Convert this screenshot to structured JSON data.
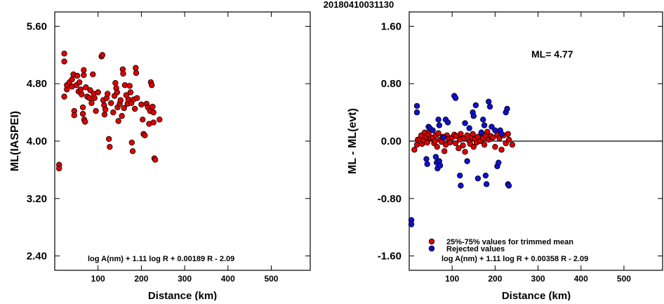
{
  "header": {
    "title": "20180410031130"
  },
  "colors": {
    "kept": "#e00000",
    "rejected": "#1010d0",
    "outline": "#000000"
  },
  "chart_data": [
    {
      "type": "scatter",
      "title": "",
      "xlabel": "Distance (km)",
      "ylabel": "ML(IASPEI)",
      "xlim": [
        0,
        590
      ],
      "ylim": [
        2.2,
        5.8
      ],
      "xticks": [
        100,
        200,
        300,
        400,
        500
      ],
      "xtick_labels": [
        "100",
        "200",
        "300",
        "400",
        "500"
      ],
      "yticks": [
        2.4,
        3.2,
        4.0,
        4.8,
        5.6
      ],
      "ytick_labels": [
        "2.40",
        "3.20",
        "4.00",
        "4.80",
        "5.60"
      ],
      "formula": "log A(nm) + 1.11 log R + 0.00189 R - 2.09",
      "series": [
        {
          "color": "#e00000",
          "points": [
            [
              10,
              3.67
            ],
            [
              10,
              3.62
            ],
            [
              22,
              5.22
            ],
            [
              22,
              5.11
            ],
            [
              22,
              4.62
            ],
            [
              28,
              4.72
            ],
            [
              28,
              4.78
            ],
            [
              34,
              4.82
            ],
            [
              40,
              4.76
            ],
            [
              40,
              4.86
            ],
            [
              43,
              4.93
            ],
            [
              45,
              4.42
            ],
            [
              45,
              4.36
            ],
            [
              50,
              4.78
            ],
            [
              52,
              4.91
            ],
            [
              55,
              4.69
            ],
            [
              57,
              4.82
            ],
            [
              60,
              4.72
            ],
            [
              62,
              4.65
            ],
            [
              65,
              4.47
            ],
            [
              65,
              4.38
            ],
            [
              67,
              4.99
            ],
            [
              67,
              4.92
            ],
            [
              68,
              4.3
            ],
            [
              70,
              4.27
            ],
            [
              72,
              4.75
            ],
            [
              75,
              4.62
            ],
            [
              80,
              4.6
            ],
            [
              82,
              4.71
            ],
            [
              85,
              4.53
            ],
            [
              88,
              4.93
            ],
            [
              90,
              4.66
            ],
            [
              92,
              4.6
            ],
            [
              95,
              4.42
            ],
            [
              100,
              4.68
            ],
            [
              108,
              5.18
            ],
            [
              110,
              5.2
            ],
            [
              112,
              4.57
            ],
            [
              114,
              4.5
            ],
            [
              115,
              4.37
            ],
            [
              117,
              4.44
            ],
            [
              120,
              4.6
            ],
            [
              122,
              4.66
            ],
            [
              125,
              4.03
            ],
            [
              127,
              3.92
            ],
            [
              130,
              4.53
            ],
            [
              135,
              4.4
            ],
            [
              138,
              4.63
            ],
            [
              140,
              4.81
            ],
            [
              142,
              4.74
            ],
            [
              144,
              4.68
            ],
            [
              145,
              4.47
            ],
            [
              147,
              4.28
            ],
            [
              150,
              4.52
            ],
            [
              152,
              4.57
            ],
            [
              155,
              4.35
            ],
            [
              157,
              5.0
            ],
            [
              158,
              4.94
            ],
            [
              160,
              4.46
            ],
            [
              162,
              4.78
            ],
            [
              165,
              4.64
            ],
            [
              168,
              4.52
            ],
            [
              170,
              4.58
            ],
            [
              173,
              4.77
            ],
            [
              175,
              4.68
            ],
            [
              177,
              4.53
            ],
            [
              178,
              3.98
            ],
            [
              180,
              3.86
            ],
            [
              182,
              4.58
            ],
            [
              185,
              4.45
            ],
            [
              187,
              5.02
            ],
            [
              188,
              4.95
            ],
            [
              190,
              4.6
            ],
            [
              200,
              4.51
            ],
            [
              203,
              4.3
            ],
            [
              205,
              4.1
            ],
            [
              208,
              4.08
            ],
            [
              212,
              4.52
            ],
            [
              215,
              4.47
            ],
            [
              218,
              4.24
            ],
            [
              220,
              4.42
            ],
            [
              222,
              4.82
            ],
            [
              224,
              4.78
            ],
            [
              226,
              4.48
            ],
            [
              228,
              4.4
            ],
            [
              228,
              4.26
            ],
            [
              230,
              3.76
            ],
            [
              232,
              3.74
            ],
            [
              242,
              4.3
            ]
          ]
        }
      ]
    },
    {
      "type": "scatter",
      "title": "",
      "xlabel": "Distance (km)",
      "ylabel": "ML - ML(evt)",
      "xlim": [
        0,
        590
      ],
      "ylim": [
        -1.8,
        1.8
      ],
      "xticks": [
        100,
        200,
        300,
        400,
        500
      ],
      "xtick_labels": [
        "100",
        "200",
        "300",
        "400",
        "500"
      ],
      "yticks": [
        -1.6,
        -0.8,
        0.0,
        0.8,
        1.6
      ],
      "ytick_labels": [
        "-1.60",
        "-0.80",
        "0.00",
        "0.80",
        "1.60"
      ],
      "annotation": "ML= 4.77",
      "reference_line": 0.0,
      "formula": "log A(nm) + 1.11 log R + 0.00358 R - 2.09",
      "legend": {
        "position": "bottom-left",
        "entries": [
          "25%-75% values for trimmed mean",
          "Rejected values"
        ]
      },
      "series": [
        {
          "name": "25%-75% values for trimmed mean",
          "color": "#e00000",
          "points": [
            [
              12,
              -0.12
            ],
            [
              18,
              -0.05
            ],
            [
              20,
              0.02
            ],
            [
              25,
              0.03
            ],
            [
              28,
              0.08
            ],
            [
              30,
              -0.04
            ],
            [
              33,
              0.01
            ],
            [
              36,
              0.12
            ],
            [
              40,
              0.06
            ],
            [
              42,
              -0.02
            ],
            [
              45,
              0.09
            ],
            [
              48,
              0.14
            ],
            [
              50,
              0.04
            ],
            [
              55,
              0.05
            ],
            [
              58,
              -0.03
            ],
            [
              60,
              0.0
            ],
            [
              62,
              0.08
            ],
            [
              65,
              -0.08
            ],
            [
              68,
              0.11
            ],
            [
              72,
              0.02
            ],
            [
              75,
              -0.01
            ],
            [
              78,
              0.06
            ],
            [
              82,
              -0.14
            ],
            [
              85,
              -0.05
            ],
            [
              88,
              0.08
            ],
            [
              92,
              0.03
            ],
            [
              95,
              -0.02
            ],
            [
              100,
              0.05
            ],
            [
              105,
              0.09
            ],
            [
              108,
              -0.03
            ],
            [
              110,
              0.07
            ],
            [
              115,
              -0.1
            ],
            [
              118,
              0.02
            ],
            [
              120,
              0.1
            ],
            [
              125,
              -0.06
            ],
            [
              128,
              0.04
            ],
            [
              130,
              -0.15
            ],
            [
              135,
              0.08
            ],
            [
              140,
              0.0
            ],
            [
              142,
              -0.04
            ],
            [
              145,
              0.05
            ],
            [
              148,
              0.1
            ],
            [
              150,
              -0.08
            ],
            [
              153,
              0.03
            ],
            [
              157,
              -0.02
            ],
            [
              160,
              0.06
            ],
            [
              165,
              0.0
            ],
            [
              168,
              0.11
            ],
            [
              172,
              0.04
            ],
            [
              175,
              -0.05
            ],
            [
              178,
              0.08
            ],
            [
              182,
              0.13
            ],
            [
              185,
              0.02
            ],
            [
              190,
              0.07
            ],
            [
              195,
              0.05
            ],
            [
              200,
              -0.08
            ],
            [
              205,
              0.09
            ],
            [
              210,
              0.04
            ],
            [
              215,
              -0.12
            ],
            [
              220,
              0.08
            ],
            [
              225,
              -0.03
            ],
            [
              230,
              0.1
            ],
            [
              232,
              0.02
            ],
            [
              240,
              -0.05
            ]
          ]
        },
        {
          "name": "Rejected values",
          "color": "#1010d0",
          "points": [
            [
              5,
              -1.1
            ],
            [
              5,
              -1.16
            ],
            [
              18,
              0.49
            ],
            [
              18,
              0.4
            ],
            [
              40,
              -0.25
            ],
            [
              42,
              -0.32
            ],
            [
              45,
              0.2
            ],
            [
              48,
              0.18
            ],
            [
              55,
              0.15
            ],
            [
              62,
              -0.22
            ],
            [
              64,
              -0.3
            ],
            [
              66,
              -0.38
            ],
            [
              68,
              0.3
            ],
            [
              70,
              -0.28
            ],
            [
              70,
              0.22
            ],
            [
              72,
              -0.34
            ],
            [
              80,
              0.05
            ],
            [
              85,
              0.3
            ],
            [
              90,
              0.26
            ],
            [
              105,
              0.63
            ],
            [
              108,
              0.6
            ],
            [
              118,
              -0.48
            ],
            [
              120,
              -0.62
            ],
            [
              130,
              0.25
            ],
            [
              135,
              -0.28
            ],
            [
              140,
              0.18
            ],
            [
              148,
              0.4
            ],
            [
              150,
              0.35
            ],
            [
              155,
              0.5
            ],
            [
              160,
              -0.52
            ],
            [
              168,
              0.12
            ],
            [
              172,
              0.3
            ],
            [
              175,
              0.22
            ],
            [
              178,
              -0.48
            ],
            [
              180,
              -0.6
            ],
            [
              185,
              0.55
            ],
            [
              188,
              0.48
            ],
            [
              192,
              0.2
            ],
            [
              200,
              0.15
            ],
            [
              205,
              -0.35
            ],
            [
              208,
              -0.3
            ],
            [
              212,
              0.15
            ],
            [
              215,
              0.1
            ],
            [
              225,
              0.4
            ],
            [
              228,
              0.45
            ],
            [
              230,
              -0.6
            ],
            [
              232,
              -0.62
            ]
          ]
        }
      ]
    }
  ]
}
